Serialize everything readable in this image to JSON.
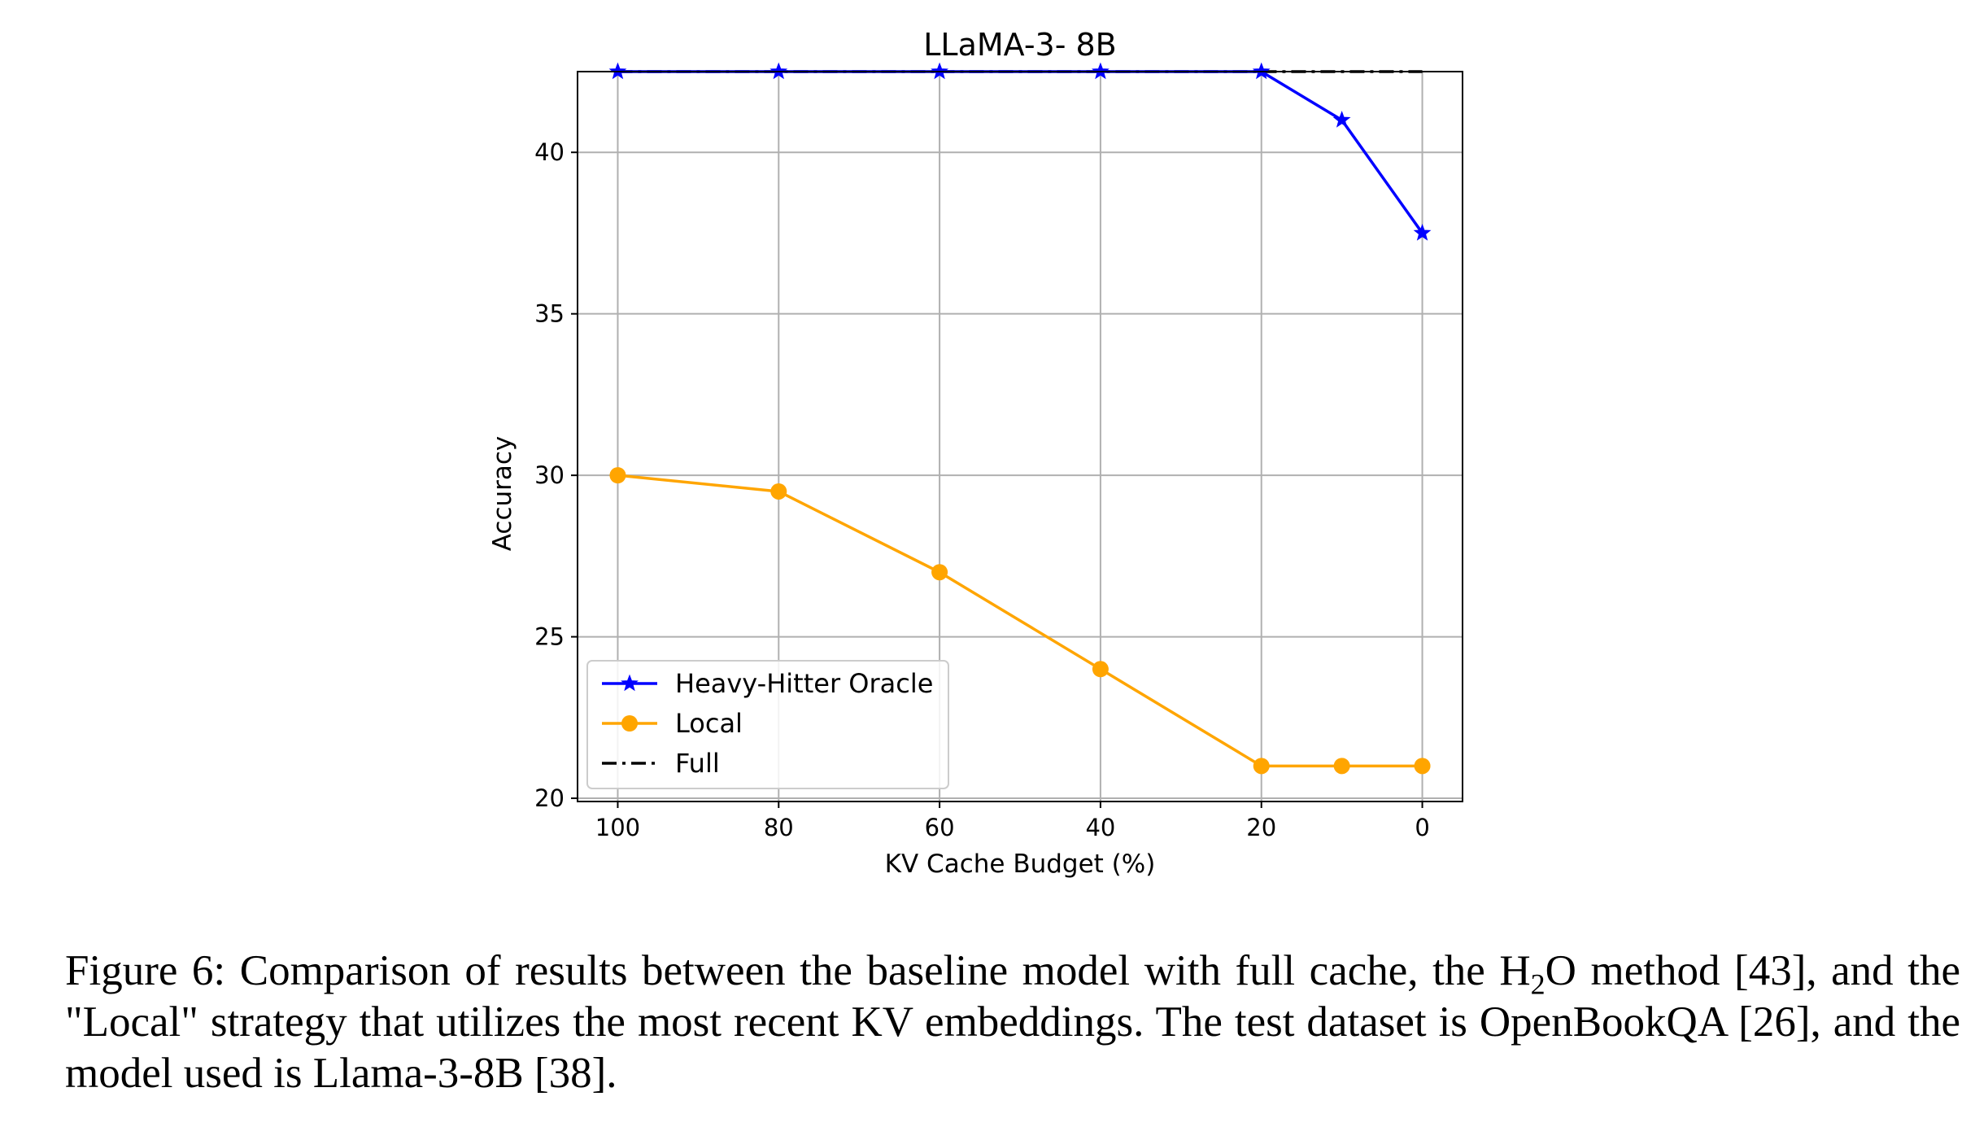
{
  "chart_data": {
    "type": "line",
    "title": "LLaMA-3- 8B",
    "xlabel": "KV Cache Budget (%)",
    "ylabel": "Accuracy",
    "x": [
      100,
      80,
      60,
      40,
      20,
      10,
      0
    ],
    "x_reversed": true,
    "xlim": [
      105,
      -5
    ],
    "ylim": [
      19.9,
      42.5
    ],
    "x_ticks": [
      "100",
      "80",
      "60",
      "40",
      "20",
      "0"
    ],
    "x_tick_values": [
      100,
      80,
      60,
      40,
      20,
      0
    ],
    "y_ticks": [
      "20",
      "25",
      "30",
      "35",
      "40"
    ],
    "y_tick_values": [
      20,
      25,
      30,
      35,
      40
    ],
    "grid": true,
    "legend_position": "lower-left",
    "series": [
      {
        "name": "Heavy-Hitter Oracle",
        "values": [
          42.5,
          42.5,
          42.5,
          42.5,
          42.5,
          41.0,
          37.5
        ],
        "color": "#0000ff",
        "marker": "star",
        "line_style": "solid"
      },
      {
        "name": "Local",
        "values": [
          30.0,
          29.5,
          27.0,
          24.0,
          21.0,
          21.0,
          21.0
        ],
        "color": "#ffa500",
        "marker": "circle",
        "line_style": "solid"
      },
      {
        "name": "Full",
        "values": [
          42.5,
          42.5,
          42.5,
          42.5,
          42.5,
          42.5,
          42.5
        ],
        "color": "#000000",
        "marker": "none",
        "line_style": "dashdot"
      }
    ]
  },
  "caption": {
    "prefix": "Figure 6:  Comparison of results between the baseline model with full cache, the H",
    "sub": "2",
    "suffix": "O method [43], and the \"Local\" strategy that utilizes the most recent KV embeddings.  The test dataset is OpenBookQA [26], and the model used is Llama-3-8B [38]."
  }
}
